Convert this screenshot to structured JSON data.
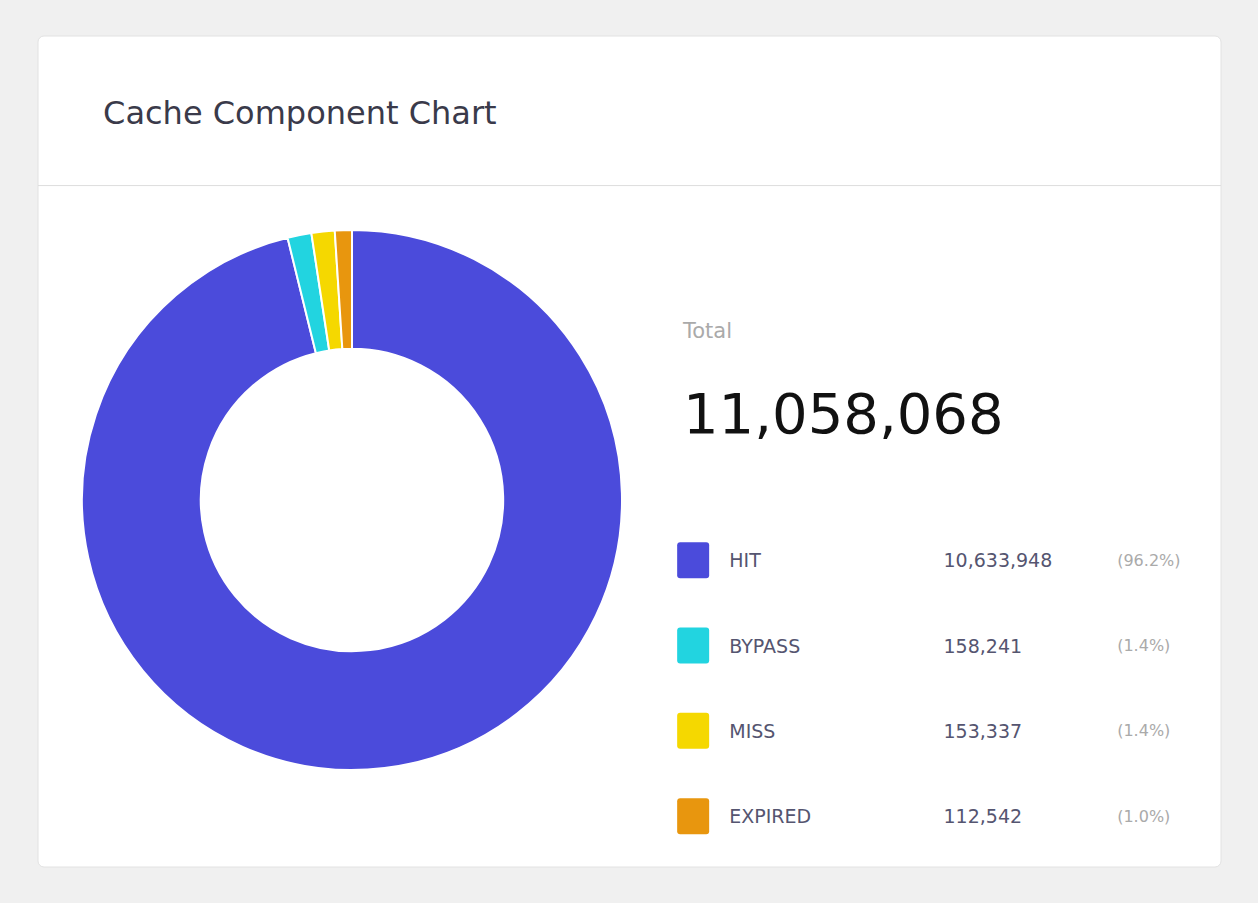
{
  "chart_data": {
    "type": "donut",
    "title": "Cache Component Chart",
    "categories": [
      "HIT",
      "BYPASS",
      "MISS",
      "EXPIRED"
    ],
    "values": [
      10633948,
      158241,
      153337,
      112542
    ],
    "value_labels": [
      "10,633,948",
      "158,241",
      "153,337",
      "112,542"
    ],
    "percentages": [
      96.2,
      1.4,
      1.4,
      1.0
    ],
    "percentage_labels": [
      "(96.2%)",
      "(1.4%)",
      "(1.4%)",
      "(1.0%)"
    ],
    "colors": [
      "#4b4bdb",
      "#22d4e0",
      "#f5d800",
      "#e8960e"
    ],
    "total_title": "Total",
    "total": 11058068,
    "total_value_label": "11,058,068",
    "legend": "right"
  }
}
